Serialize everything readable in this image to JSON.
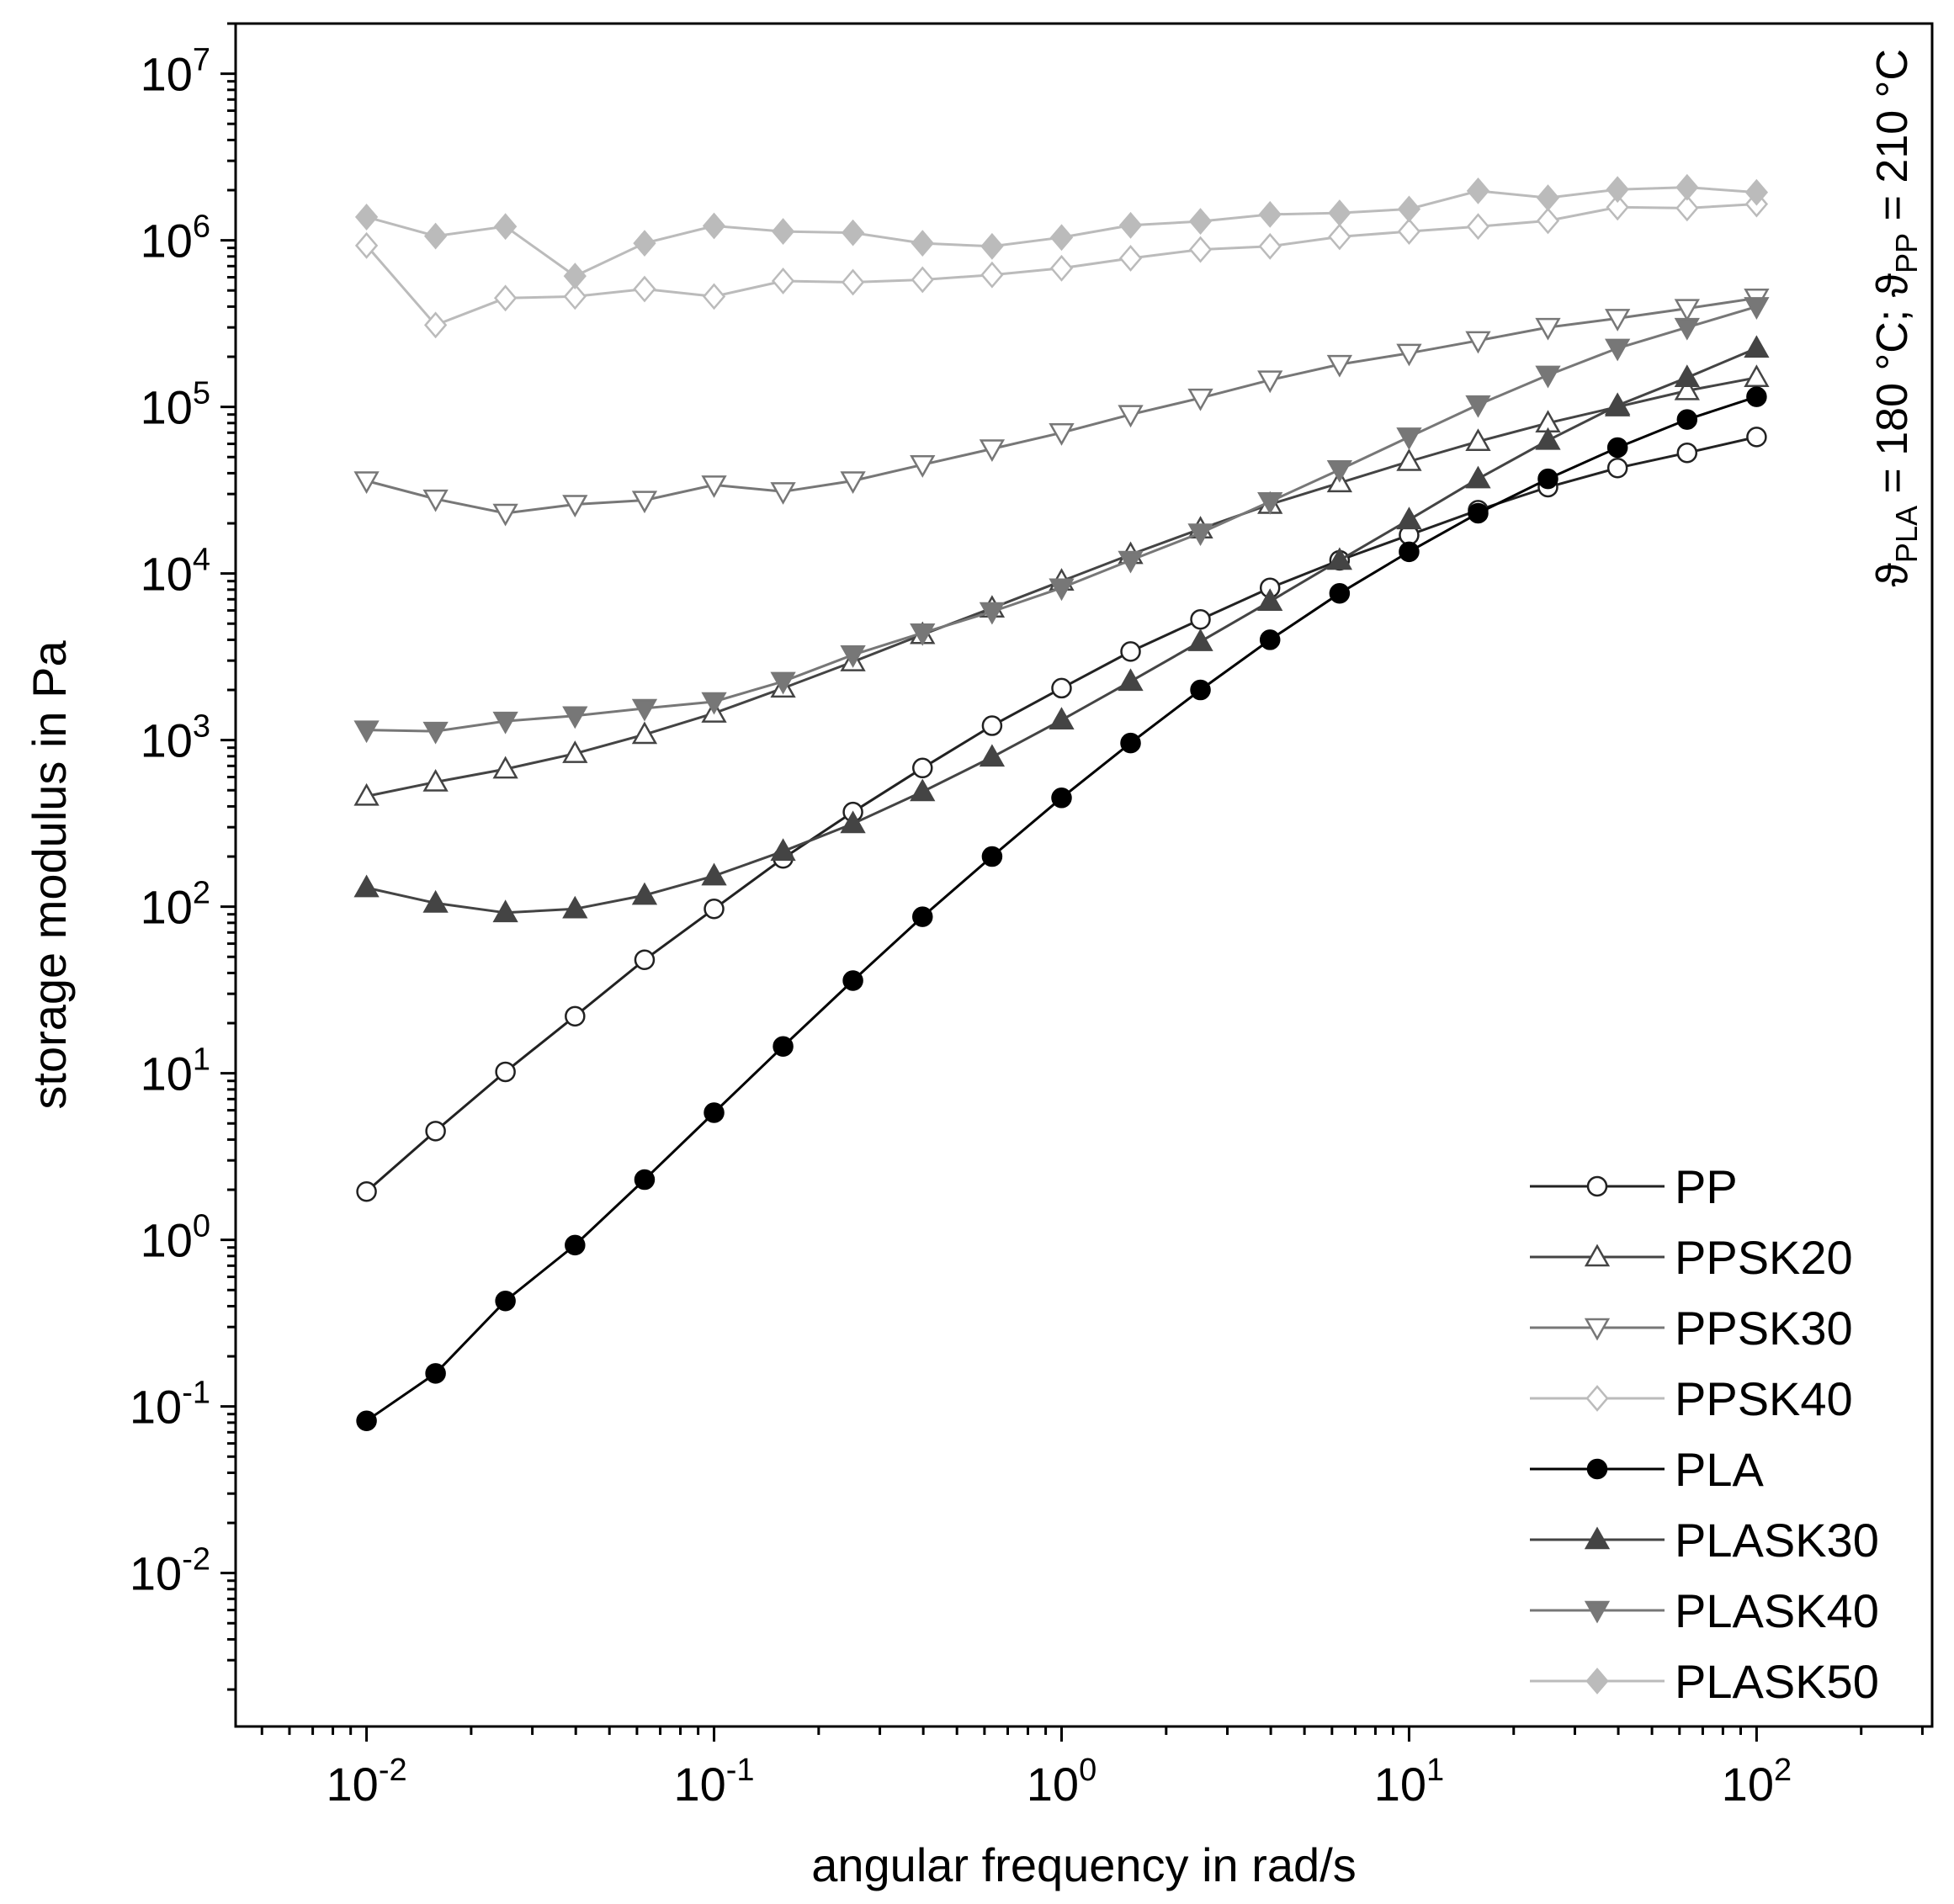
{
  "chart_data": {
    "type": "line",
    "title": "",
    "xlabel": "angular frequency in rad/s",
    "ylabel": "storage modulus in Pa",
    "xscale": "log",
    "yscale": "log",
    "xlim": [
      0.0042,
      320
    ],
    "ylim": [
      0.0012,
      20000000
    ],
    "x_tick_exponents": [
      "-2",
      "-1",
      "0",
      "1",
      "2"
    ],
    "y_tick_exponents": [
      "7",
      "6",
      "5",
      "4",
      "3",
      "2",
      "1",
      "0",
      "-1",
      "-2"
    ],
    "tick_base": "10",
    "grid": false,
    "legend_position": "bottom-right",
    "annotation": {
      "symbol": "ϑ",
      "sub_pla": "PLA",
      "sub_pp": "PP",
      "text_pla": " = 180 °C; ",
      "text_pp": " = 210 °C"
    },
    "x": [
      0.01,
      0.0158,
      0.0251,
      0.0398,
      0.0631,
      0.1,
      0.158,
      0.251,
      0.398,
      0.631,
      1,
      1.58,
      2.51,
      3.98,
      6.31,
      10,
      15.8,
      25.1,
      39.8,
      63.1,
      100
    ],
    "series": [
      {
        "name": "PP",
        "marker": "circle",
        "fill": "#ffffff",
        "stroke": "#222222",
        "line": "#222222",
        "values": [
          1.95,
          4.5,
          10.2,
          22,
          48,
          97,
          195,
          370,
          680,
          1220,
          2050,
          3400,
          5300,
          8200,
          12000,
          17000,
          24000,
          33000,
          43000,
          53000,
          66000
        ]
      },
      {
        "name": "PPSK20",
        "marker": "triangle-up",
        "fill": "#ffffff",
        "stroke": "#444444",
        "line": "#444444",
        "values": [
          460,
          560,
          670,
          830,
          1080,
          1450,
          2050,
          2950,
          4300,
          6200,
          9000,
          13000,
          18500,
          26000,
          35000,
          47000,
          62000,
          80000,
          100000,
          125000,
          150000
        ]
      },
      {
        "name": "PPSK30",
        "marker": "triangle-down",
        "fill": "#ffffff",
        "stroke": "#777777",
        "line": "#777777",
        "values": [
          36000,
          28000,
          23000,
          26000,
          27500,
          34000,
          31000,
          36000,
          45000,
          56000,
          70000,
          90000,
          113000,
          145000,
          180000,
          210000,
          250000,
          300000,
          340000,
          390000,
          450000
        ]
      },
      {
        "name": "PPSK40",
        "marker": "diamond",
        "fill": "#ffffff",
        "stroke": "#bbbbbb",
        "line": "#bbbbbb",
        "values": [
          930000,
          310000,
          450000,
          460000,
          510000,
          460000,
          570000,
          560000,
          580000,
          620000,
          680000,
          780000,
          880000,
          920000,
          1050000,
          1130000,
          1210000,
          1310000,
          1580000,
          1560000,
          1650000
        ]
      },
      {
        "name": "PLA",
        "marker": "circle",
        "fill": "#000000",
        "stroke": "#000000",
        "line": "#000000",
        "values": [
          0.082,
          0.158,
          0.43,
          0.93,
          2.3,
          5.8,
          14.5,
          36,
          87,
          200,
          450,
          960,
          2000,
          4000,
          7600,
          13500,
          23000,
          37000,
          57000,
          84000,
          115000
        ]
      },
      {
        "name": "PLASK30",
        "marker": "triangle-up",
        "fill": "#444444",
        "stroke": "#444444",
        "line": "#444444",
        "values": [
          130,
          105,
          92,
          97,
          117,
          153,
          215,
          315,
          490,
          790,
          1320,
          2250,
          3900,
          6800,
          12000,
          21000,
          37000,
          63000,
          102000,
          150000,
          225000
        ]
      },
      {
        "name": "PLASK40",
        "marker": "triangle-down",
        "fill": "#777777",
        "stroke": "#777777",
        "line": "#777777",
        "values": [
          1150,
          1130,
          1300,
          1400,
          1550,
          1700,
          2250,
          3250,
          4400,
          5900,
          8200,
          12000,
          17500,
          27000,
          42000,
          66000,
          103000,
          155000,
          225000,
          300000,
          400000
        ]
      },
      {
        "name": "PLASK50",
        "marker": "diamond",
        "fill": "#bbbbbb",
        "stroke": "#bbbbbb",
        "line": "#bbbbbb",
        "values": [
          1380000,
          1060000,
          1210000,
          610000,
          960000,
          1220000,
          1130000,
          1110000,
          960000,
          920000,
          1040000,
          1230000,
          1300000,
          1430000,
          1460000,
          1540000,
          1980000,
          1800000,
          2020000,
          2080000,
          1940000
        ]
      }
    ]
  }
}
